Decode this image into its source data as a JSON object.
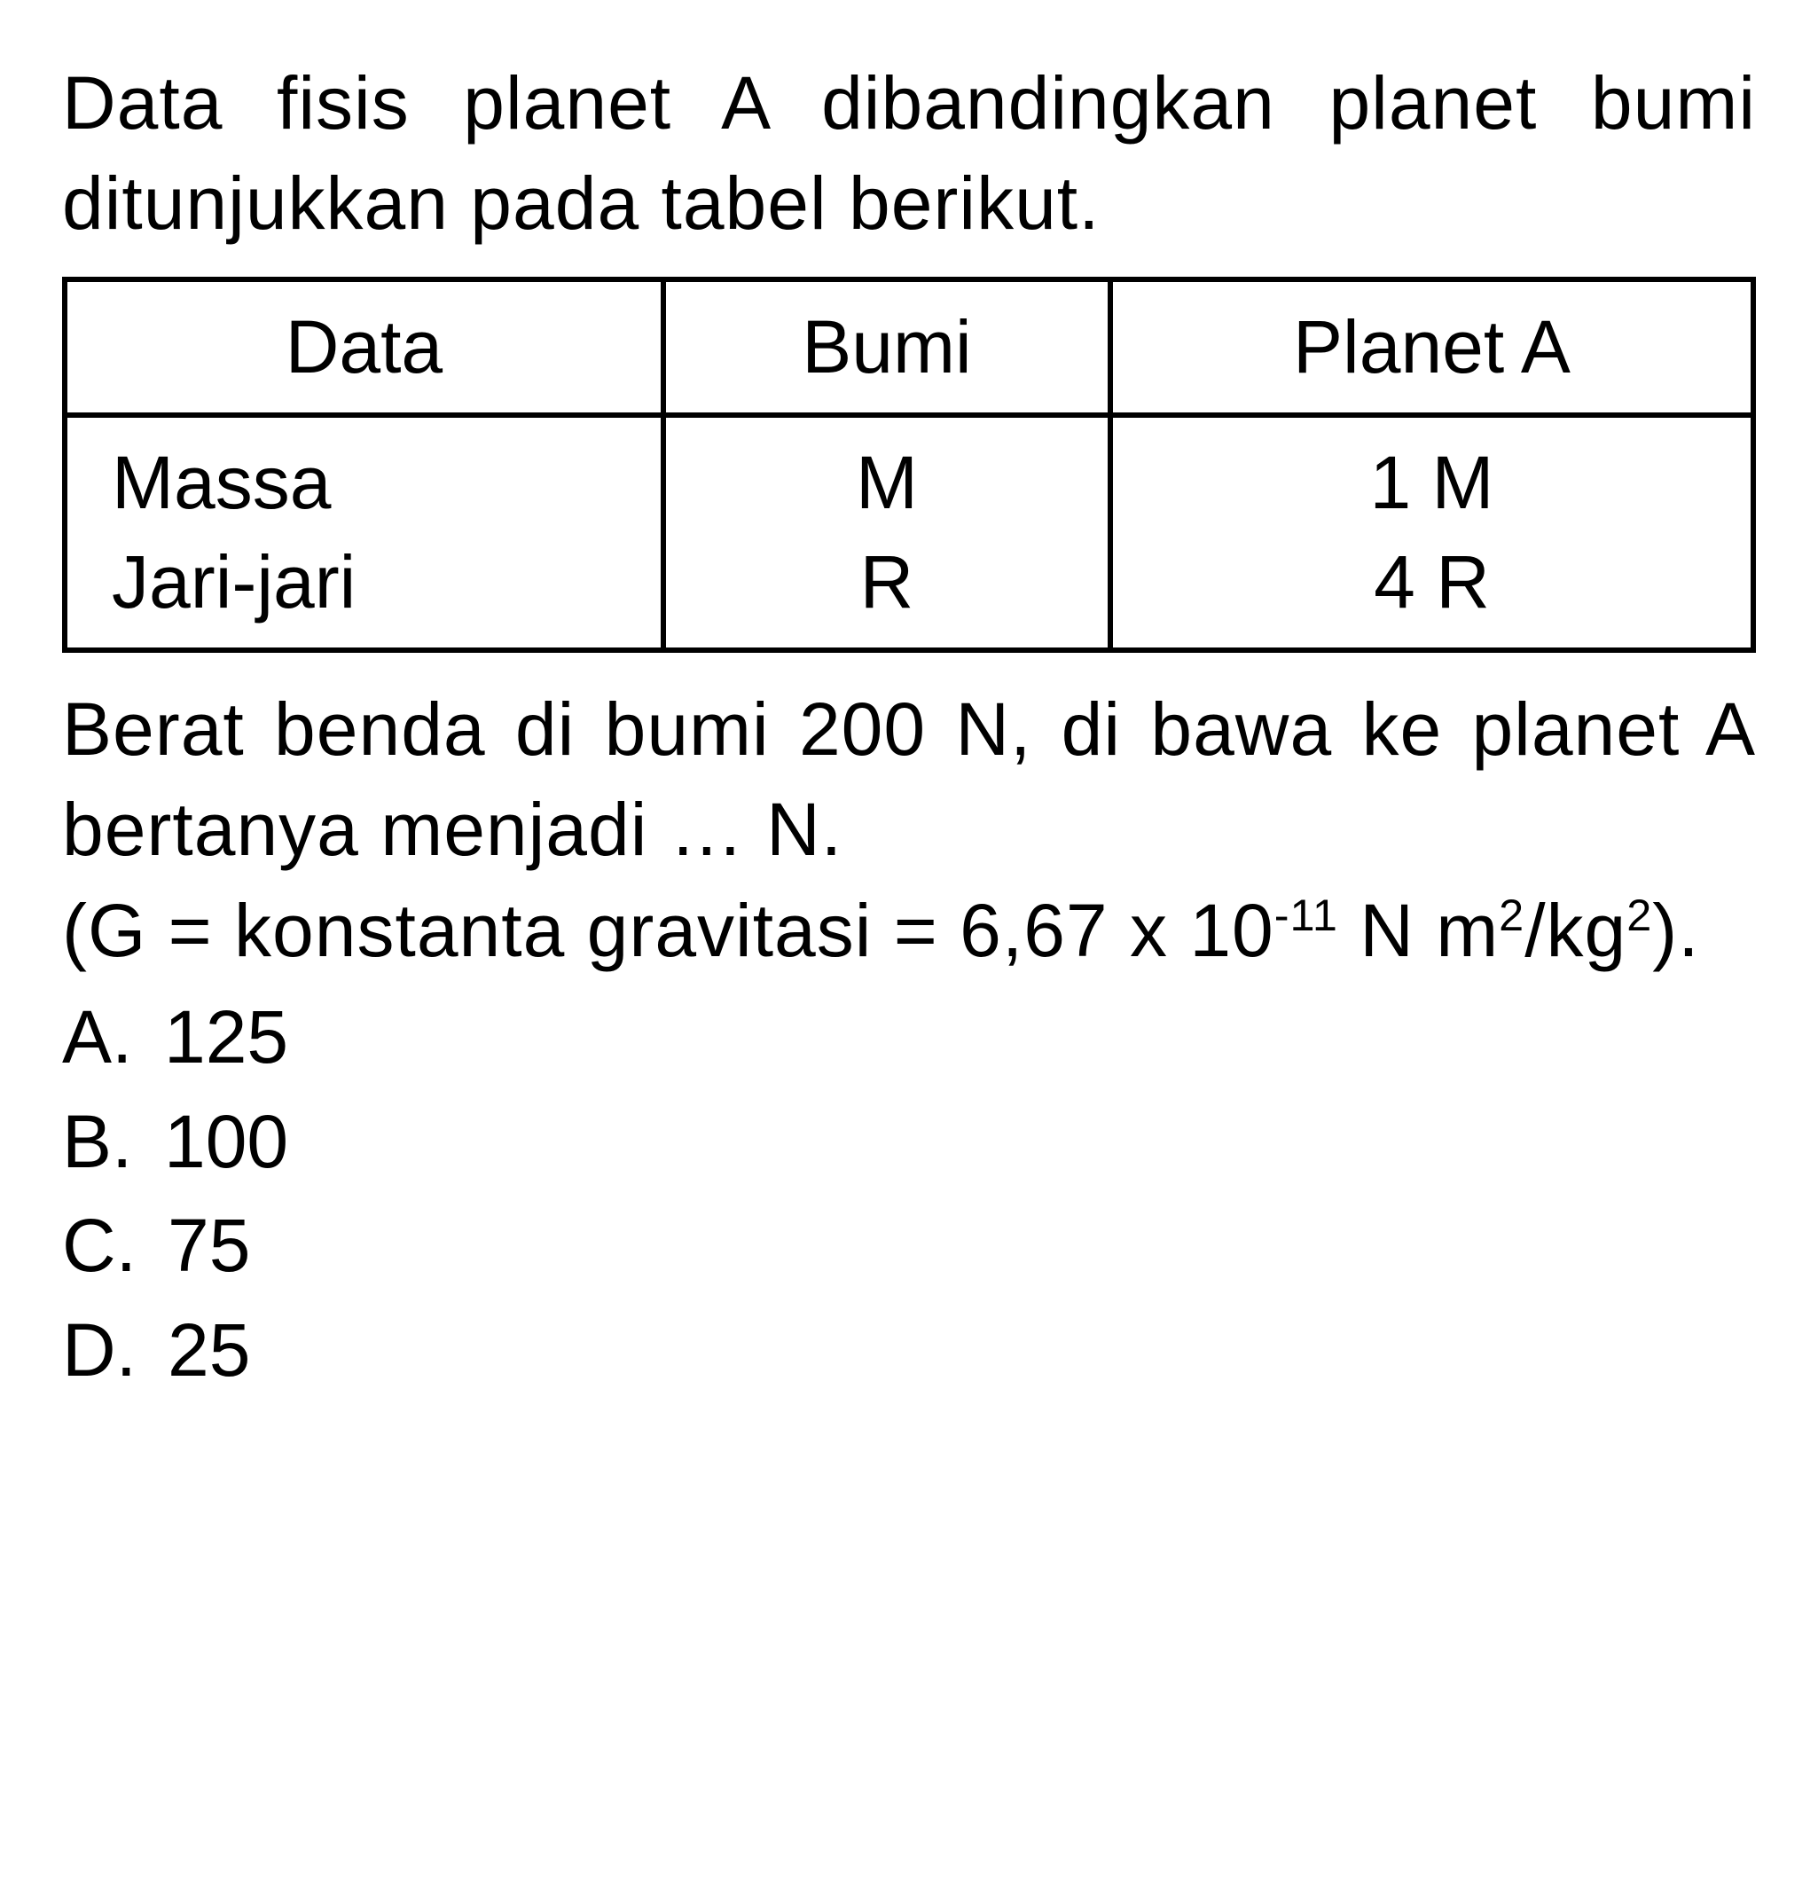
{
  "intro": "Data fisis planet A dibandingkan planet bumi ditunjukkan pada tabel berikut.",
  "table": {
    "headers": [
      "Data",
      "Bumi",
      "Planet A"
    ],
    "col1_rows": [
      "Massa",
      "Jari-jari"
    ],
    "col2_rows": [
      "M",
      "R"
    ],
    "col3_rows": [
      "1 M",
      "4 R"
    ]
  },
  "question_line1": "Berat benda di bumi 200 N, di bawa ke planet A bertanya menjadi … N.",
  "formula_prefix": "(G = konstanta gravitasi = 6,67 x 10",
  "formula_exp": "-11",
  "formula_suffix": " N m",
  "formula_exp2": "2",
  "formula_mid": "/kg",
  "formula_exp3": "2",
  "formula_end": ").",
  "options": [
    {
      "letter": "A.",
      "value": "125"
    },
    {
      "letter": "B.",
      "value": "100"
    },
    {
      "letter": "C.",
      "value": "75"
    },
    {
      "letter": "D.",
      "value": "25"
    }
  ],
  "colors": {
    "background": "#ffffff",
    "text": "#000000",
    "border": "#000000"
  },
  "typography": {
    "body_fontsize": 84,
    "font_family": "Arial"
  }
}
